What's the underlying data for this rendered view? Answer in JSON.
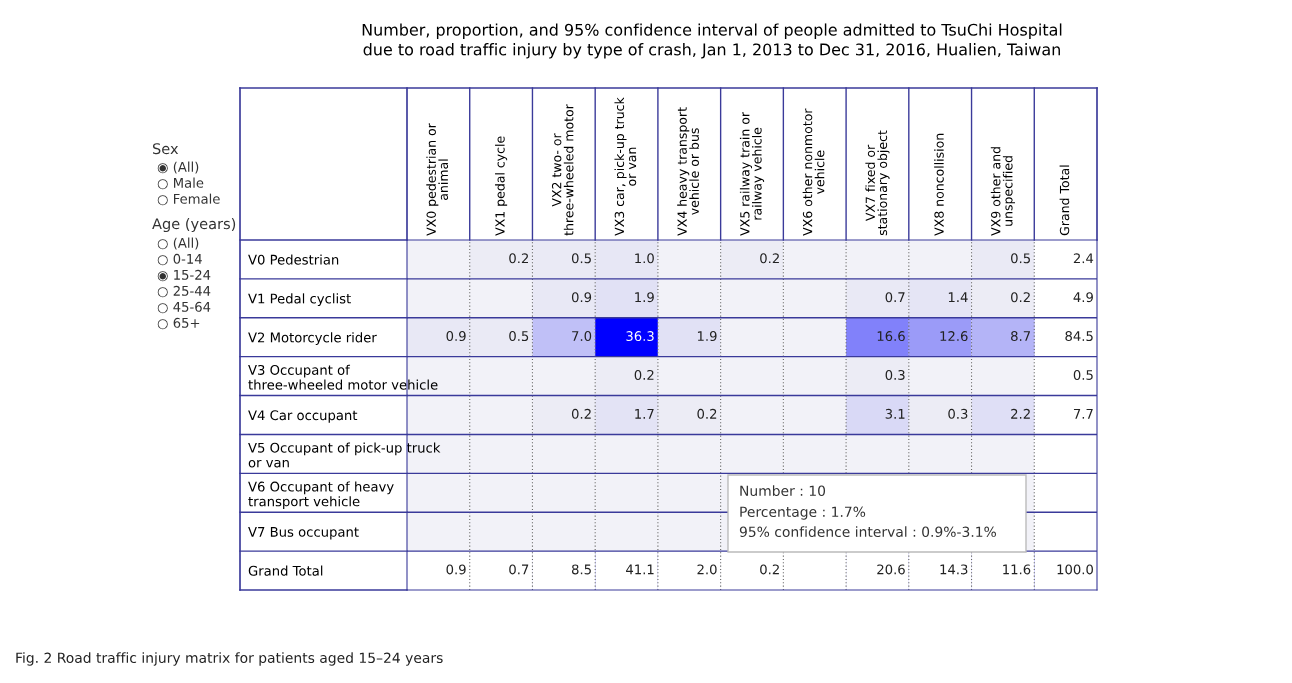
{
  "chart_data": {
    "type": "heatmap",
    "title": "Number, proportion, and 95% confidence interval of people admitted to TsuChi Hospital\ndue to road traffic injury by type of crash, Jan 1, 2013 to Dec 31, 2016, Hualien, Taiwan",
    "categories": [
      "VX0 pedestrian or\nanimal",
      "VX1 pedal cycle",
      "VX2 two- or\nthree-wheeled motor",
      "VX3 car, pick-up truck\nor van",
      "VX4 heavy transport\nvehicle or bus",
      "VX5 railway train or\nrailway vehicle",
      "VX6 other nonmotor\nvehicle",
      "VX7 fixed or\nstationary object",
      "VX8 noncollision",
      "VX9 other and\nunspecified",
      "Grand Total"
    ],
    "y_categories": [
      "V0 Pedestrian",
      "V1 Pedal cyclist",
      "V2 Motorcycle rider",
      "V3 Occupant of\nthree-wheeled motor vehicle",
      "V4 Car occupant",
      "V5 Occupant of pick-up truck\nor van",
      "V6 Occupant of heavy\ntransport vehicle",
      "V7 Bus occupant",
      "Grand Total"
    ],
    "cells": [
      [
        null,
        0.2,
        0.5,
        1.0,
        null,
        0.2,
        null,
        null,
        null,
        0.5,
        2.4
      ],
      [
        null,
        null,
        0.9,
        1.9,
        null,
        null,
        null,
        0.7,
        1.4,
        0.2,
        4.9
      ],
      [
        0.9,
        0.5,
        7.0,
        36.3,
        1.9,
        null,
        null,
        16.6,
        12.6,
        8.7,
        84.5
      ],
      [
        null,
        null,
        null,
        0.2,
        null,
        null,
        null,
        0.3,
        null,
        null,
        0.5
      ],
      [
        null,
        null,
        0.2,
        1.7,
        0.2,
        null,
        null,
        3.1,
        0.3,
        2.2,
        7.7
      ],
      [
        null,
        null,
        null,
        null,
        null,
        null,
        null,
        null,
        null,
        null,
        null
      ],
      [
        null,
        null,
        null,
        null,
        null,
        null,
        null,
        null,
        null,
        null,
        null
      ],
      [
        null,
        null,
        null,
        null,
        null,
        null,
        null,
        null,
        null,
        null,
        null
      ],
      [
        0.9,
        0.7,
        8.5,
        41.1,
        2.0,
        0.2,
        null,
        20.6,
        14.3,
        11.6,
        100.0
      ]
    ],
    "cell_labels": [
      [
        null,
        "0.2",
        "0.5",
        "1.0",
        null,
        "0.2",
        null,
        null,
        null,
        "0.5",
        "2.4"
      ],
      [
        null,
        null,
        "0.9",
        "1.9",
        null,
        null,
        null,
        "0.7",
        "1.4",
        "0.2",
        "4.9"
      ],
      [
        "0.9",
        "0.5",
        "7.0",
        "36.3",
        "1.9",
        null,
        null,
        "16.6",
        "12.6",
        "8.7",
        "84.5"
      ],
      [
        null,
        null,
        null,
        "0.2",
        null,
        null,
        null,
        "0.3",
        null,
        null,
        "0.5"
      ],
      [
        null,
        null,
        "0.2",
        "1.7",
        "0.2",
        null,
        null,
        "3.1",
        "0.3",
        "2.2",
        "7.7"
      ],
      [
        null,
        null,
        null,
        null,
        null,
        null,
        null,
        null,
        null,
        null,
        null
      ],
      [
        null,
        null,
        null,
        null,
        null,
        null,
        null,
        null,
        null,
        null,
        null
      ],
      [
        null,
        null,
        null,
        null,
        null,
        null,
        null,
        null,
        null,
        null,
        null
      ],
      [
        "0.9",
        "0.7",
        "8.5",
        "41.1",
        "2.0",
        "0.2",
        null,
        "20.6",
        "14.3",
        "11.6",
        "100.0"
      ]
    ],
    "annotations": [
      "Sex",
      "◉ (All)",
      "○ Male",
      "○ Female",
      "Age (years)",
      "○ (All)",
      "○ 0-14",
      "◉ 15-24",
      "○ 25-44",
      "○ 45-64",
      "○ 65+",
      "Number : 10",
      "Percentage : 1.7%",
      "95% confidence interval : 0.9%-3.1%",
      "Fig. 2 Road traffic injury matrix for patients aged 15–24 years"
    ]
  }
}
